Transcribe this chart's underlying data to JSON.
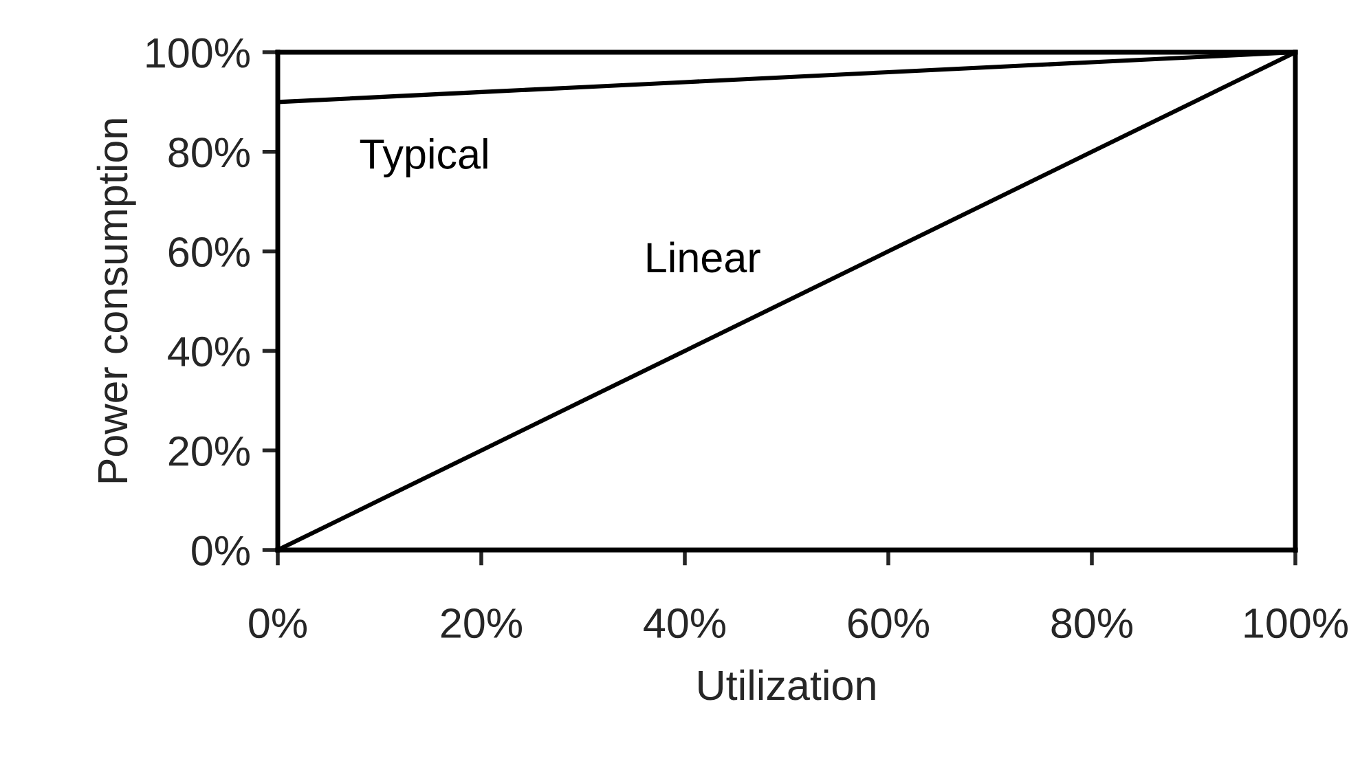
{
  "chart_data": {
    "type": "line",
    "xlabel": "Utilization",
    "ylabel": "Power consumption",
    "x": [
      0,
      10,
      20,
      30,
      40,
      50,
      60,
      70,
      80,
      90,
      100
    ],
    "series": [
      {
        "name": "Typical",
        "color": "#000000",
        "values": [
          90,
          91,
          92,
          93,
          94,
          95,
          96,
          97,
          98,
          99,
          100
        ]
      },
      {
        "name": "Linear",
        "color": "#000000",
        "values": [
          0,
          10,
          20,
          30,
          40,
          50,
          60,
          70,
          80,
          90,
          100
        ]
      }
    ],
    "xlim": [
      0,
      100
    ],
    "ylim": [
      0,
      100
    ],
    "xticks": [
      {
        "value": 0,
        "label": "0%"
      },
      {
        "value": 20,
        "label": "20%"
      },
      {
        "value": 40,
        "label": "40%"
      },
      {
        "value": 60,
        "label": "60%"
      },
      {
        "value": 80,
        "label": "80%"
      },
      {
        "value": 100,
        "label": "100%"
      }
    ],
    "yticks": [
      {
        "value": 0,
        "label": "0%"
      },
      {
        "value": 20,
        "label": "20%"
      },
      {
        "value": 40,
        "label": "40%"
      },
      {
        "value": 60,
        "label": "60%"
      },
      {
        "value": 80,
        "label": "80%"
      },
      {
        "value": 100,
        "label": "100%"
      }
    ],
    "grid": false,
    "legend": false,
    "marker": "none",
    "line_style": "solid"
  }
}
